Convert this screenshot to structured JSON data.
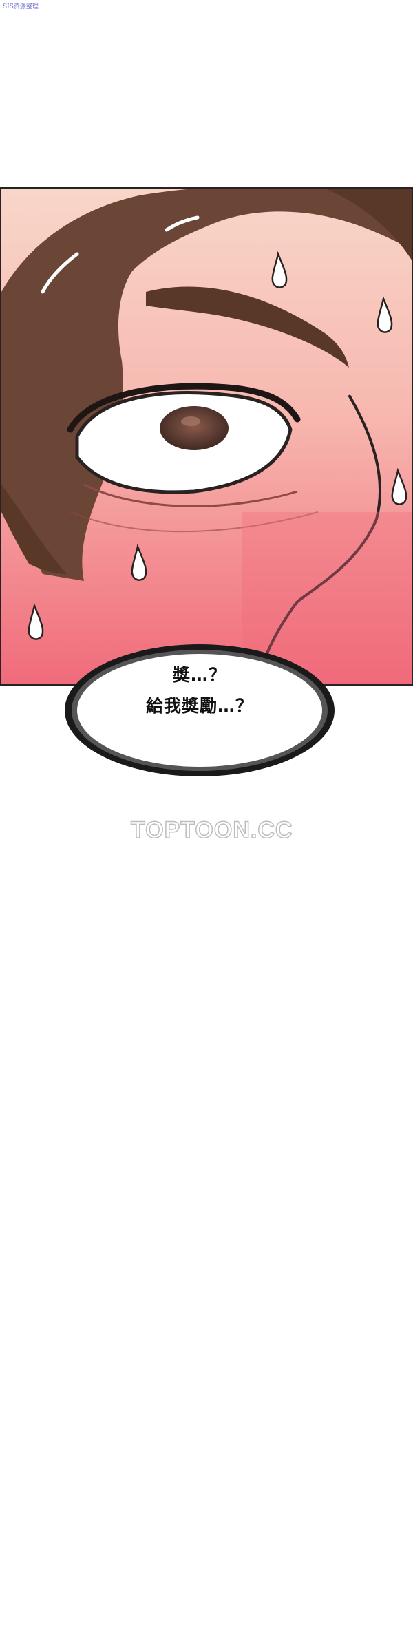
{
  "corner_tag": "SIS资源整理",
  "speech_bubble": {
    "lines": [
      "獎…？",
      "給我獎勵…？"
    ]
  },
  "watermark": "TOPTOON.CC",
  "colors": {
    "hair": "#6b4535",
    "skin": "#f8d6c9",
    "blush": "#f2707c",
    "outline": "#2a2222",
    "sweat": "#ffffff"
  }
}
